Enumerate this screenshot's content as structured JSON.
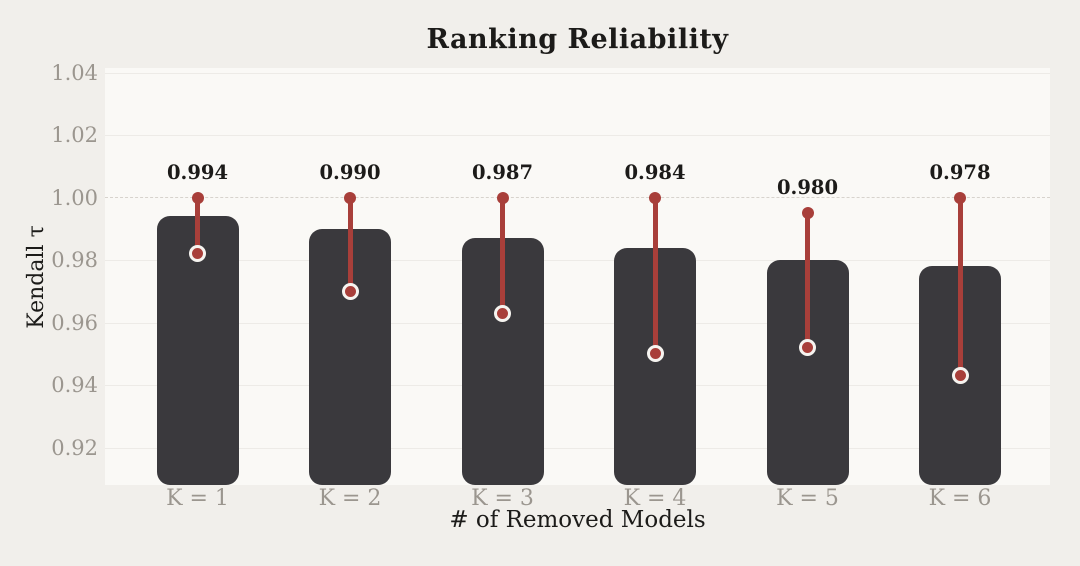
{
  "chart_data": {
    "type": "bar",
    "title": "Ranking Reliability",
    "xlabel": "# of Removed Models",
    "ylabel": "Kendall τ",
    "categories": [
      "K = 1",
      "K = 2",
      "K = 3",
      "K = 4",
      "K = 5",
      "K = 6"
    ],
    "values": [
      0.994,
      0.99,
      0.987,
      0.984,
      0.98,
      0.978
    ],
    "value_labels": [
      "0.994",
      "0.990",
      "0.987",
      "0.984",
      "0.980",
      "0.978"
    ],
    "error_low": [
      0.982,
      0.97,
      0.963,
      0.95,
      0.952,
      0.943
    ],
    "error_high": [
      1.0,
      1.0,
      1.0,
      1.0,
      0.995,
      1.0
    ],
    "ylim": [
      0.908,
      1.0415
    ],
    "yticks": [
      1.04,
      1.02,
      1.0,
      0.98,
      0.96,
      0.94,
      0.92
    ],
    "ytick_labels": [
      "1.04",
      "1.02",
      "1.00",
      "0.98",
      "0.96",
      "0.94",
      "0.92"
    ],
    "reference_line": 1.0,
    "grid": true,
    "legend": false,
    "colors": {
      "background": "#f1efeb",
      "plot_background": "#faf9f6",
      "bar": "#3a393d",
      "error": "#a83f3a",
      "marker_ring": "#f6f4f0",
      "gridline": "#edebe7",
      "reference_line": "#d7d3cd",
      "tick_label": "#9b968f",
      "text": "#1c1b19"
    }
  }
}
